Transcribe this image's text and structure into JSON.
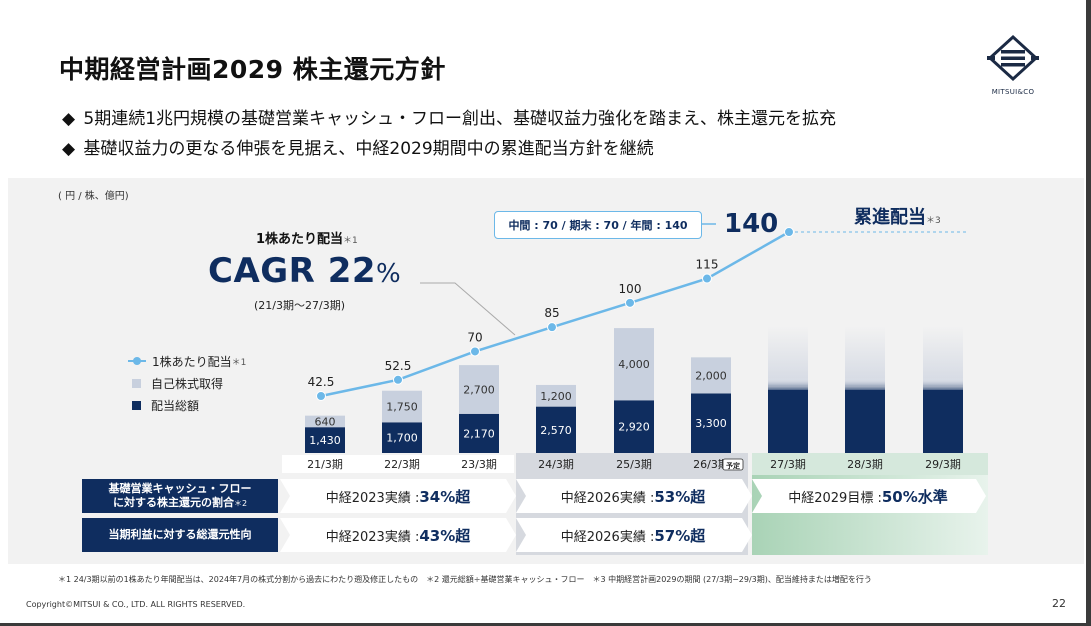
{
  "title": "中期経営計画2029 株主還元方針",
  "bullets": [
    "5期連続1兆円規模の基礎営業キャッシュ・フロー創出、基礎収益力強化を踏まえ、株主還元を拡充",
    "基礎収益力の更なる伸張を見据え、中経2029期間中の累進配当方針を継続"
  ],
  "bullet_marker": "◆",
  "logo_text": "MITSUI&CO",
  "unit": "( 円 / 株、億円)",
  "cagr": {
    "caption": "1株あたり配当",
    "caption_note": "＊1",
    "value": "CAGR 22",
    "pct": "%",
    "range": "(21/3期〜27/3期)"
  },
  "legend": {
    "dps": "1株あたり配当",
    "dps_note": "＊1",
    "buyback": "自己株式取得",
    "dividend": "配当総額"
  },
  "callout": "中間 : 70 / 期末 : 70 / 年間 : 140",
  "last_value": "140",
  "progressive": "累進配当",
  "progressive_note": "＊3",
  "row1_label_a": "基礎営業キャッシュ・フロー",
  "row1_label_b": "に対する株主還元の割合",
  "row1_note": "＊2",
  "row2_label": "当期利益に対する総還元性向",
  "row1_cells": [
    {
      "prefix": "中経2023実績 : ",
      "value": "34%超"
    },
    {
      "prefix": "中経2026実績 : ",
      "value": "53%超"
    },
    {
      "prefix": "中経2029目標 : ",
      "value": "50%水準"
    }
  ],
  "row2_cells": [
    {
      "prefix": "中経2023実績 : ",
      "value": "43%超"
    },
    {
      "prefix": "中経2026実績 : ",
      "value": "57%超"
    }
  ],
  "footnote": "＊1 24/3期以前の1株あたり年間配当は、2024年7月の株式分割から過去にわたり遡及修正したもの　＊2 還元総額÷基礎営業キャッシュ・フロー　＊3 中期経営計画2029の期間 (27/3期−29/3期)、配当維持または増配を行う",
  "copyright": "Copyright©MITSUI & CO., LTD. ALL RIGHTS RESERVED.",
  "page_number": "22",
  "colors": {
    "navy": "#0f2d5f",
    "buyback": "#c8d0de",
    "line": "#6cb8e8",
    "panel": "#f2f2f2"
  },
  "chart_data": {
    "type": "bar",
    "categories": [
      "21/3期",
      "22/3期",
      "23/3期",
      "24/3期",
      "25/3期",
      "26/3期",
      "27/3期",
      "28/3期",
      "29/3期"
    ],
    "badge": {
      "category": "26/3期",
      "text": "予定"
    },
    "series": [
      {
        "name": "配当総額",
        "values": [
          1430,
          1700,
          2170,
          2570,
          2920,
          3300,
          null,
          null,
          null
        ]
      },
      {
        "name": "自己株式取得",
        "values": [
          640,
          1750,
          2700,
          1200,
          4000,
          2000,
          null,
          null,
          null
        ]
      },
      {
        "name": "1株あたり配当",
        "values": [
          42.5,
          52.5,
          70,
          85,
          100,
          115,
          140,
          null,
          null
        ],
        "labels": [
          "42.5",
          "52.5",
          "70",
          "85",
          "100",
          "115",
          "",
          "",
          ""
        ]
      }
    ],
    "bar_labels_dividend": [
      "1,430",
      "1,700",
      "2,170",
      "2,570",
      "2,920",
      "3,300",
      "",
      "",
      ""
    ],
    "bar_labels_buyback": [
      "640",
      "1,750",
      "2,700",
      "1,200",
      "4,000",
      "2,000",
      "",
      "",
      ""
    ],
    "planned_bars": [
      true,
      true,
      true
    ]
  }
}
